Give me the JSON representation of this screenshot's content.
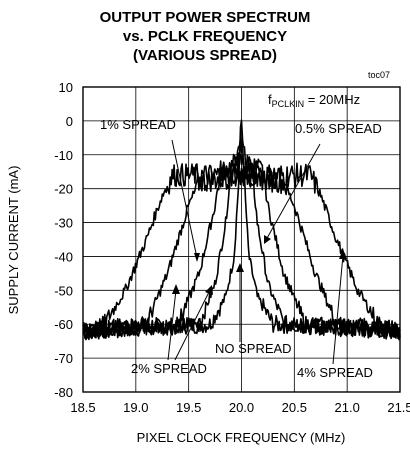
{
  "chart_data": {
    "type": "line",
    "title_lines": [
      "OUTPUT POWER SPECTRUM",
      "vs. PCLK FREQUENCY",
      "(VARIOUS SPREAD)"
    ],
    "xlabel": "PIXEL CLOCK FREQUENCY (MHz)",
    "ylabel": "SUPPLY CURRENT (mA)",
    "xlim": [
      18.5,
      21.5
    ],
    "ylim": [
      -80,
      10
    ],
    "xticks": [
      "18.5",
      "19.0",
      "19.5",
      "20.0",
      "20.5",
      "21.0",
      "21.5"
    ],
    "yticks": [
      "10",
      "0",
      "-10",
      "-20",
      "-30",
      "-40",
      "-50",
      "-60",
      "-70",
      "-80"
    ],
    "grid": true,
    "tag": "toc07",
    "condition": {
      "prefix": "f",
      "subscript": "PCLKIN",
      "suffix": " = 20MHz"
    },
    "series": [
      {
        "name": "NO SPREAD",
        "x": [
          18.5,
          19.7,
          19.85,
          19.93,
          19.97,
          19.99,
          20.0,
          20.01,
          20.03,
          20.07,
          20.15,
          20.3,
          21.5
        ],
        "y": [
          -62,
          -60,
          -52,
          -40,
          -20,
          -5,
          0,
          -5,
          -20,
          -40,
          -52,
          -60,
          -62
        ]
      },
      {
        "name": "0.5% SPREAD",
        "x": [
          18.5,
          19.6,
          19.75,
          19.85,
          19.9,
          19.95,
          20.0,
          20.05,
          20.1,
          20.15,
          20.25,
          20.4,
          21.5
        ],
        "y": [
          -62,
          -60,
          -48,
          -30,
          -15,
          -10,
          -8,
          -10,
          -15,
          -30,
          -48,
          -60,
          -62
        ]
      },
      {
        "name": "1% SPREAD",
        "x": [
          18.5,
          19.4,
          19.6,
          19.75,
          19.8,
          20.0,
          20.2,
          20.25,
          20.4,
          20.6,
          21.5
        ],
        "y": [
          -62,
          -60,
          -45,
          -25,
          -15,
          -12,
          -15,
          -25,
          -45,
          -60,
          -62
        ]
      },
      {
        "name": "2% SPREAD",
        "x": [
          18.5,
          19.1,
          19.3,
          19.5,
          19.6,
          20.0,
          20.4,
          20.5,
          20.7,
          20.9,
          21.5
        ],
        "y": [
          -62,
          -60,
          -45,
          -25,
          -18,
          -16,
          -18,
          -25,
          -45,
          -60,
          -62
        ]
      },
      {
        "name": "4% SPREAD",
        "x": [
          18.5,
          18.7,
          18.9,
          19.1,
          19.25,
          19.35,
          19.4,
          20.0,
          20.6,
          20.65,
          20.75,
          20.9,
          21.1,
          21.3,
          21.5
        ],
        "y": [
          -62,
          -60,
          -50,
          -35,
          -22,
          -16,
          -16,
          -16,
          -16,
          -16,
          -22,
          -35,
          -50,
          -60,
          -62
        ]
      }
    ],
    "annotations": [
      "1% SPREAD",
      "0.5% SPREAD",
      "NO SPREAD",
      "2% SPREAD",
      "4% SPREAD"
    ]
  }
}
